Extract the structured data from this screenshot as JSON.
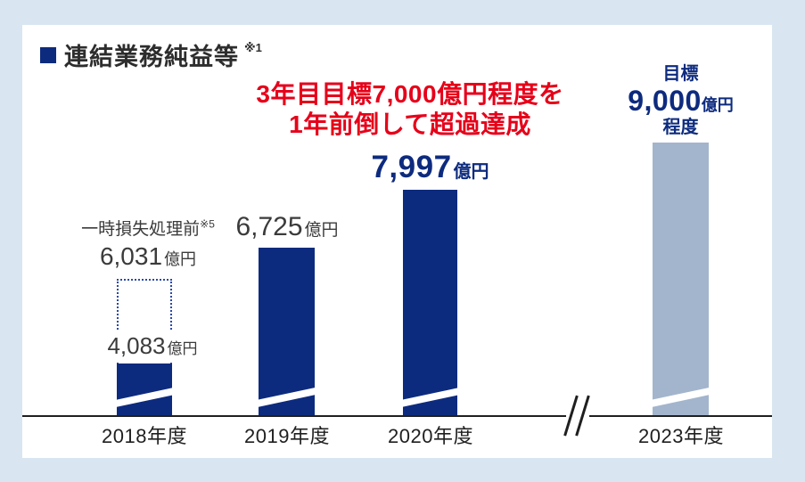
{
  "header": {
    "title": "連結業務純益等",
    "title_note": "※1"
  },
  "annotation": {
    "line1": "3年目目標7,000億円程度を",
    "line2": "1年前倒して超過達成",
    "color": "#e60019"
  },
  "colors": {
    "bar_primary": "#0d2b7e",
    "bar_target": "#a3b5cd",
    "accent_red": "#e60019",
    "page_background": "#d9e6f1",
    "card_background": "#ffffff",
    "text_dark": "#3b3b3b",
    "axis": "#1f1f1f",
    "dotted_outline": "#2a49a8"
  },
  "chart_data": {
    "type": "bar",
    "title": "連結業務純益等 ※1",
    "unit": "億円",
    "categories": [
      "2018年度",
      "2019年度",
      "2020年度",
      "2023年度"
    ],
    "values": [
      4083,
      6725,
      7997,
      9000
    ],
    "axis_break_between": [
      "2020年度",
      "2023年度"
    ],
    "bars_truncated_at_bottom": true,
    "legend_position": "none",
    "grid": false,
    "bars": [
      {
        "category": "2018年度",
        "value": 4083,
        "value_label": "4,083",
        "unit": "億円",
        "color": "#0d2b7e",
        "note_label": "一時損失処理前",
        "note_sup": "※5",
        "note_value": 6031,
        "note_value_label": "6,031",
        "note_unit": "億円",
        "note_style": "dotted-outline-bar"
      },
      {
        "category": "2019年度",
        "value": 6725,
        "value_label": "6,725",
        "unit": "億円",
        "color": "#0d2b7e"
      },
      {
        "category": "2020年度",
        "value": 7997,
        "value_label": "7,997",
        "unit": "億円",
        "color": "#0d2b7e"
      },
      {
        "category": "2023年度",
        "value": 9000,
        "value_label": "9,000",
        "unit": "億円",
        "prefix": "目標",
        "suffix": "程度",
        "color": "#a3b5cd",
        "is_target": true
      }
    ]
  }
}
